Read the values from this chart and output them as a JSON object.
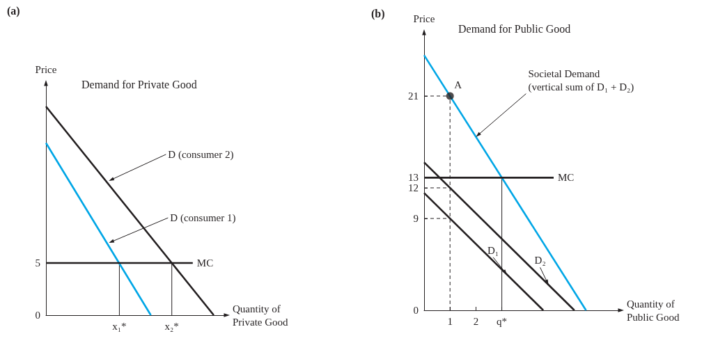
{
  "chart_data": [
    {
      "type": "line",
      "title": "(a)",
      "subtitle": "Demand for Private Good",
      "xlabel": "Quantity of Private Good",
      "ylabel": "Price",
      "categories": [
        null,
        null,
        null,
        null,
        null,
        null,
        null,
        "x₁*",
        null,
        null,
        null,
        null,
        "x₂*",
        null,
        null,
        null,
        null,
        null
      ],
      "ylim": [
        0,
        22
      ],
      "yticks": [
        0,
        5
      ],
      "grid": false,
      "marker": "none",
      "series": [
        {
          "color": "#231f20",
          "values": [
            20,
            18.75,
            17.5,
            16.25,
            15,
            13.75,
            12.5,
            11.25,
            10,
            8.75,
            7.5,
            6.25,
            5,
            3.75,
            2.5,
            1.25,
            0,
            null
          ]
        },
        {
          "color": "#00a6e6",
          "values": [
            16.5,
            14.85,
            13.2,
            11.55,
            9.9,
            8.25,
            6.6,
            4.95,
            3.3,
            1.65,
            0,
            null,
            null,
            null,
            null,
            null,
            null,
            null
          ]
        },
        {
          "color": "#231f20",
          "values": [
            5,
            5,
            5,
            5,
            5,
            5,
            5,
            5,
            5,
            5,
            5,
            5,
            5,
            5,
            5,
            null,
            null,
            null
          ]
        },
        {
          "color": "#231f20",
          "x": [
            "x₁*",
            "x₁*"
          ],
          "values": [
            0,
            5
          ],
          "line_style": "solid"
        },
        {
          "color": "#231f20",
          "x": [
            "x₂*",
            "x₂*"
          ],
          "values": [
            0,
            5
          ],
          "line_style": "solid"
        }
      ],
      "annotations": [
        "D (consumer 2)",
        "D (consumer 1)",
        "MC"
      ]
    },
    {
      "type": "line",
      "title": "(b)",
      "subtitle": "Demand for Public Good",
      "xlabel": "Quantity of Public Good",
      "ylabel": "Price",
      "xlim": [
        0,
        7.5
      ],
      "ylim": [
        0,
        27
      ],
      "xticks": [
        1,
        2,
        {
          "value": 3,
          "label": "q*"
        }
      ],
      "yticks": [
        0,
        9,
        12,
        13,
        21
      ],
      "grid": false,
      "marker": "none",
      "series": [
        {
          "color": "#00a6e6",
          "x": [
            0,
            6.25
          ],
          "values": [
            25,
            0
          ]
        },
        {
          "color": "#231f20",
          "x": [
            0,
            4.6
          ],
          "values": [
            11.5,
            0
          ]
        },
        {
          "color": "#231f20",
          "x": [
            0,
            5.8
          ],
          "values": [
            14.5,
            0
          ]
        },
        {
          "color": "#231f20",
          "x": [
            0,
            5
          ],
          "values": [
            13,
            13
          ]
        },
        {
          "color": "#231f20",
          "x": [
            1,
            1
          ],
          "values": [
            0,
            21
          ],
          "line_style": "dashed"
        },
        {
          "color": "#231f20",
          "x": [
            0,
            1
          ],
          "values": [
            21,
            21
          ],
          "line_style": "dashed"
        },
        {
          "color": "#231f20",
          "x": [
            0,
            1
          ],
          "values": [
            12,
            12
          ],
          "line_style": "dashed"
        },
        {
          "color": "#231f20",
          "x": [
            0,
            1
          ],
          "values": [
            9,
            9
          ],
          "line_style": "dashed"
        },
        {
          "color": "#231f20",
          "x": [
            3,
            3
          ],
          "values": [
            0,
            13
          ],
          "line_style": "solid"
        },
        {
          "type": "scatter",
          "color": "#231f20",
          "x": [
            1
          ],
          "values": [
            21
          ],
          "marker": "circle"
        }
      ],
      "annotations": [
        {
          "text": "A",
          "x": 1,
          "y": 21
        },
        {
          "text": "Societal Demand (vertical sum of D₁ + D₂)",
          "x": 2,
          "y": 17
        },
        {
          "text": "MC",
          "x": 5,
          "y": 13
        },
        {
          "text": "D₁",
          "x": 3.2,
          "y": 3.5
        },
        {
          "text": "D₂",
          "x": 4.8,
          "y": 2.5
        }
      ]
    }
  ]
}
